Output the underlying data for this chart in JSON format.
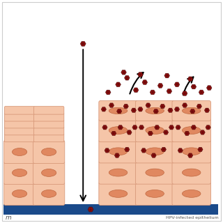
{
  "bg_color": "#ffffff",
  "border_color": "#cccccc",
  "cell_fill": "#f5c5a8",
  "cell_edge": "#d8997a",
  "nucleus_fill": "#e08860",
  "nucleus_edge": "#c06840",
  "virus_color": "#8b0f0f",
  "basement_color": "#1a4a8a",
  "text_color": "#555555",
  "left_label": "m",
  "right_label": "HPV-infected epithelium",
  "fig_width": 3.2,
  "fig_height": 3.2,
  "dpi": 100
}
